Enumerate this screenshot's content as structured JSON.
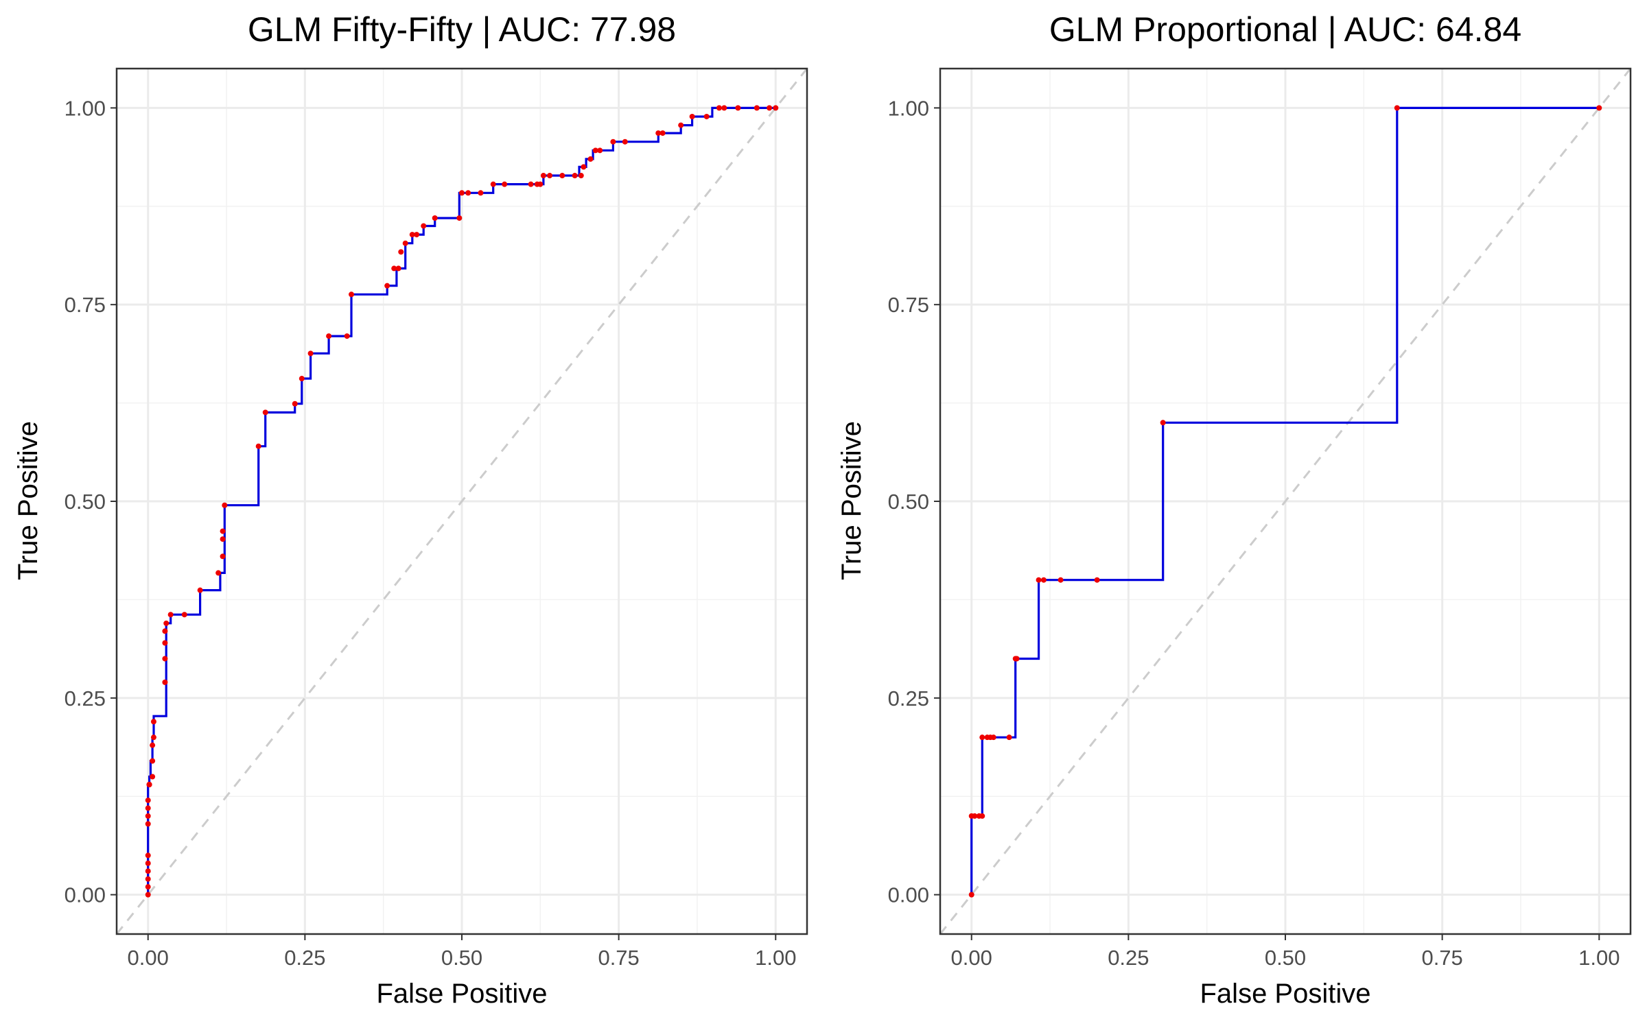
{
  "chart_data": [
    {
      "type": "line",
      "title": "GLM Fifty-Fifty | AUC: 77.98",
      "xlabel": "False Positive",
      "ylabel": "True Positive",
      "xlim": [
        0,
        1
      ],
      "ylim": [
        0,
        1
      ],
      "x_ticks": [
        "0.00",
        "0.25",
        "0.50",
        "0.75",
        "1.00"
      ],
      "y_ticks": [
        "0.00",
        "0.25",
        "0.50",
        "0.75",
        "1.00"
      ],
      "grid": true,
      "legend": "none",
      "reference_line": {
        "x": [
          0,
          1
        ],
        "y": [
          0,
          1
        ],
        "style": "dashed",
        "color": "#cccccc"
      },
      "curve_color": "#0000dd",
      "point_color": "#ee0000",
      "series": [
        {
          "x": [
            0.0,
            0.0,
            0.002,
            0.002,
            0.004,
            0.004,
            0.007,
            0.007,
            0.009,
            0.009,
            0.029,
            0.029,
            0.036,
            0.036,
            0.083,
            0.083,
            0.115,
            0.115,
            0.122,
            0.122,
            0.176,
            0.176,
            0.187,
            0.187,
            0.234,
            0.234,
            0.245,
            0.245,
            0.259,
            0.259,
            0.288,
            0.288,
            0.324,
            0.324,
            0.381,
            0.381,
            0.396,
            0.396,
            0.41,
            0.41,
            0.421,
            0.421,
            0.439,
            0.439,
            0.457,
            0.457,
            0.496,
            0.496,
            0.55,
            0.55,
            0.63,
            0.63,
            0.687,
            0.687,
            0.698,
            0.698,
            0.709,
            0.709,
            0.741,
            0.741,
            0.813,
            0.813,
            0.849,
            0.849,
            0.867,
            0.867,
            0.899,
            0.899,
            0.91,
            0.91,
            1.0
          ],
          "y": [
            0.0,
            0.14,
            0.14,
            0.15,
            0.15,
            0.17,
            0.17,
            0.2,
            0.2,
            0.227,
            0.227,
            0.345,
            0.345,
            0.356,
            0.356,
            0.387,
            0.387,
            0.409,
            0.409,
            0.495,
            0.495,
            0.57,
            0.57,
            0.613,
            0.613,
            0.624,
            0.624,
            0.656,
            0.656,
            0.688,
            0.688,
            0.71,
            0.71,
            0.763,
            0.763,
            0.774,
            0.774,
            0.796,
            0.796,
            0.828,
            0.828,
            0.839,
            0.839,
            0.85,
            0.85,
            0.86,
            0.86,
            0.892,
            0.892,
            0.903,
            0.903,
            0.914,
            0.914,
            0.925,
            0.925,
            0.935,
            0.935,
            0.946,
            0.946,
            0.957,
            0.957,
            0.968,
            0.968,
            0.978,
            0.978,
            0.989,
            0.989,
            1.0,
            1.0,
            1.0,
            1.0
          ]
        }
      ],
      "points": {
        "x": [
          0.0,
          0.0,
          0.0,
          0.0,
          0.0,
          0.0,
          0.0,
          0.0,
          0.0,
          0.0,
          0.002,
          0.002,
          0.002,
          0.002,
          0.007,
          0.007,
          0.007,
          0.009,
          0.009,
          0.027,
          0.027,
          0.027,
          0.027,
          0.029,
          0.036,
          0.058,
          0.083,
          0.112,
          0.119,
          0.119,
          0.119,
          0.122,
          0.176,
          0.187,
          0.234,
          0.245,
          0.259,
          0.288,
          0.317,
          0.324,
          0.381,
          0.392,
          0.399,
          0.403,
          0.41,
          0.421,
          0.428,
          0.439,
          0.457,
          0.496,
          0.5,
          0.51,
          0.53,
          0.55,
          0.568,
          0.61,
          0.62,
          0.625,
          0.63,
          0.64,
          0.66,
          0.68,
          0.69,
          0.694,
          0.705,
          0.713,
          0.72,
          0.741,
          0.76,
          0.813,
          0.82,
          0.849,
          0.867,
          0.89,
          0.91,
          0.918,
          0.94,
          0.97,
          0.99,
          1.0
        ],
        "y": [
          0.0,
          0.01,
          0.02,
          0.03,
          0.04,
          0.05,
          0.09,
          0.1,
          0.11,
          0.12,
          0.14,
          0.14,
          0.14,
          0.14,
          0.15,
          0.17,
          0.19,
          0.2,
          0.22,
          0.27,
          0.3,
          0.32,
          0.335,
          0.345,
          0.356,
          0.356,
          0.387,
          0.409,
          0.43,
          0.452,
          0.462,
          0.495,
          0.57,
          0.613,
          0.624,
          0.656,
          0.688,
          0.71,
          0.71,
          0.763,
          0.774,
          0.796,
          0.796,
          0.817,
          0.828,
          0.839,
          0.839,
          0.85,
          0.86,
          0.86,
          0.892,
          0.892,
          0.892,
          0.903,
          0.903,
          0.903,
          0.903,
          0.903,
          0.914,
          0.914,
          0.914,
          0.914,
          0.914,
          0.925,
          0.935,
          0.946,
          0.946,
          0.957,
          0.957,
          0.968,
          0.968,
          0.978,
          0.989,
          0.989,
          1.0,
          1.0,
          1.0,
          1.0,
          1.0,
          1.0
        ]
      }
    },
    {
      "type": "line",
      "title": "GLM Proportional | AUC: 64.84",
      "xlabel": "False Positive",
      "ylabel": "True Positive",
      "xlim": [
        0,
        1
      ],
      "ylim": [
        0,
        1
      ],
      "x_ticks": [
        "0.00",
        "0.25",
        "0.50",
        "0.75",
        "1.00"
      ],
      "y_ticks": [
        "0.00",
        "0.25",
        "0.50",
        "0.75",
        "1.00"
      ],
      "grid": true,
      "legend": "none",
      "reference_line": {
        "x": [
          0,
          1
        ],
        "y": [
          0,
          1
        ],
        "style": "dashed",
        "color": "#cccccc"
      },
      "curve_color": "#0000dd",
      "point_color": "#ee0000",
      "series": [
        {
          "x": [
            0.0,
            0.0,
            0.017,
            0.017,
            0.07,
            0.07,
            0.107,
            0.107,
            0.305,
            0.305,
            0.678,
            0.678,
            1.0
          ],
          "y": [
            0.0,
            0.1,
            0.1,
            0.2,
            0.2,
            0.3,
            0.3,
            0.4,
            0.4,
            0.6,
            0.6,
            1.0,
            1.0
          ]
        }
      ],
      "points": {
        "x": [
          0.0,
          0.0,
          0.005,
          0.012,
          0.017,
          0.017,
          0.025,
          0.03,
          0.035,
          0.06,
          0.07,
          0.072,
          0.107,
          0.115,
          0.142,
          0.2,
          0.305,
          0.678,
          1.0
        ],
        "y": [
          0.0,
          0.1,
          0.1,
          0.1,
          0.1,
          0.2,
          0.2,
          0.2,
          0.2,
          0.2,
          0.3,
          0.3,
          0.4,
          0.4,
          0.4,
          0.4,
          0.6,
          1.0,
          1.0
        ]
      }
    }
  ]
}
